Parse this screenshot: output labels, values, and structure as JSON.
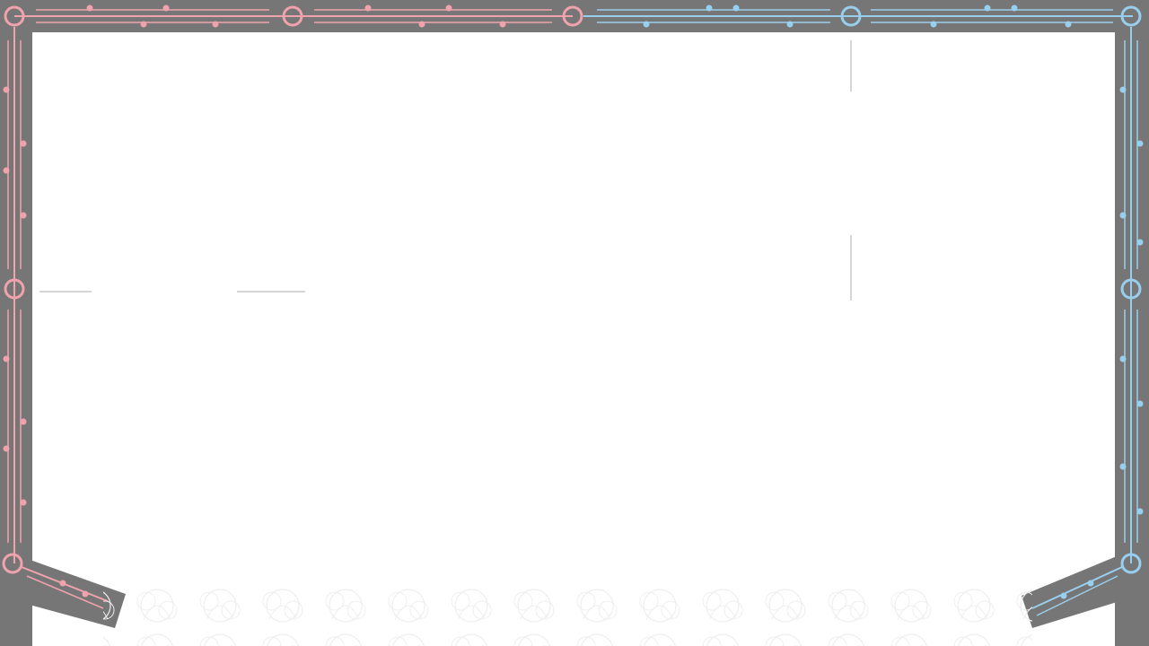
{
  "frame": {
    "left_color": "#f0a3ad",
    "right_color": "#99cfee",
    "band_color": "#767676",
    "panel_color": "#ffffff",
    "divider_color": "#c8c8c8",
    "pattern_color": "#f0f0f0",
    "left_icon": "circuit-trace-ornament",
    "right_icon": "circuit-trace-ornament",
    "bottom_icon": "lattice-pattern"
  }
}
